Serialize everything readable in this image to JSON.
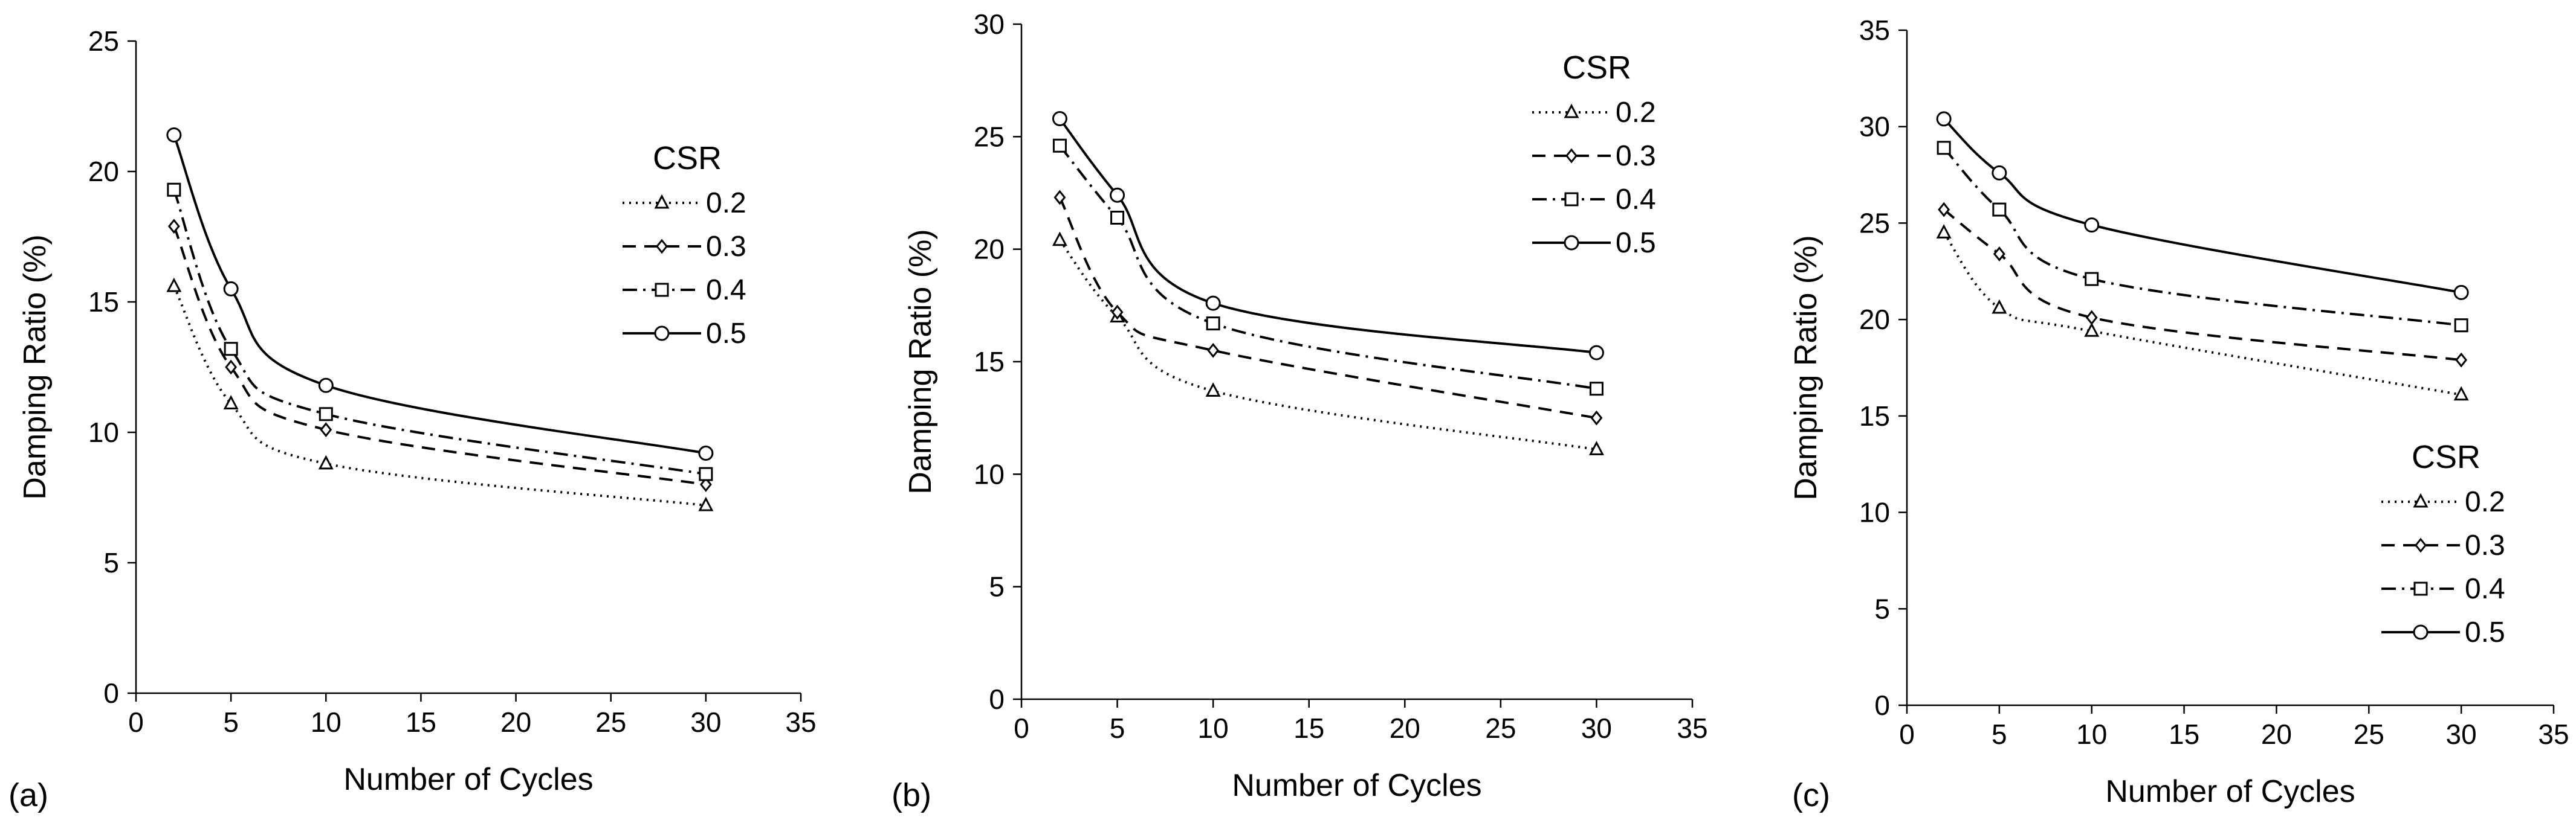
{
  "chart_data": [
    {
      "type": "line",
      "panel": "(a)",
      "xlabel": "Number of Cycles",
      "ylabel": "Damping Ratio (%)",
      "xlim": [
        0,
        35
      ],
      "ylim": [
        0,
        25
      ],
      "xticks": [
        0,
        5,
        10,
        15,
        20,
        25,
        30,
        35
      ],
      "yticks": [
        0,
        5,
        10,
        15,
        20,
        25
      ],
      "legend": {
        "title": "CSR",
        "position": "upper-right"
      },
      "x": [
        2,
        5,
        10,
        30
      ],
      "series": [
        {
          "name": "0.2",
          "marker": "triangle",
          "dash": "dotted",
          "values": [
            15.6,
            11.1,
            8.8,
            7.2
          ]
        },
        {
          "name": "0.3",
          "marker": "diamond",
          "dash": "dashed",
          "values": [
            17.9,
            12.5,
            10.1,
            8.0
          ]
        },
        {
          "name": "0.4",
          "marker": "square",
          "dash": "dash-dot",
          "values": [
            19.3,
            13.2,
            10.7,
            8.4
          ]
        },
        {
          "name": "0.5",
          "marker": "circle",
          "dash": "solid",
          "values": [
            21.4,
            15.5,
            11.8,
            9.2
          ]
        }
      ]
    },
    {
      "type": "line",
      "panel": "(b)",
      "xlabel": "Number of Cycles",
      "ylabel": "Damping Ratio (%)",
      "xlim": [
        0,
        35
      ],
      "ylim": [
        0,
        30
      ],
      "xticks": [
        0,
        5,
        10,
        15,
        20,
        25,
        30,
        35
      ],
      "yticks": [
        0,
        5,
        10,
        15,
        20,
        25,
        30
      ],
      "legend": {
        "title": "CSR",
        "position": "upper-right"
      },
      "x": [
        2,
        5,
        10,
        30
      ],
      "series": [
        {
          "name": "0.2",
          "marker": "triangle",
          "dash": "dotted",
          "values": [
            20.4,
            17.0,
            13.7,
            11.1
          ]
        },
        {
          "name": "0.3",
          "marker": "diamond",
          "dash": "dashed",
          "values": [
            22.3,
            17.2,
            15.5,
            12.5
          ]
        },
        {
          "name": "0.4",
          "marker": "square",
          "dash": "dash-dot",
          "values": [
            24.6,
            21.4,
            16.7,
            13.8
          ]
        },
        {
          "name": "0.5",
          "marker": "circle",
          "dash": "solid",
          "values": [
            25.8,
            22.4,
            17.6,
            15.4
          ]
        }
      ]
    },
    {
      "type": "line",
      "panel": "(c)",
      "xlabel": "Number of Cycles",
      "ylabel": "Damping Ratio (%)",
      "xlim": [
        0,
        35
      ],
      "ylim": [
        0,
        35
      ],
      "xticks": [
        0,
        5,
        10,
        15,
        20,
        25,
        30,
        35
      ],
      "yticks": [
        0,
        5,
        10,
        15,
        20,
        25,
        30,
        35
      ],
      "legend": {
        "title": "CSR",
        "position": "lower-right"
      },
      "x": [
        2,
        5,
        10,
        30
      ],
      "series": [
        {
          "name": "0.2",
          "marker": "triangle",
          "dash": "dotted",
          "values": [
            24.5,
            20.6,
            19.4,
            16.1
          ]
        },
        {
          "name": "0.3",
          "marker": "diamond",
          "dash": "dashed",
          "values": [
            25.7,
            23.4,
            20.1,
            17.9
          ]
        },
        {
          "name": "0.4",
          "marker": "square",
          "dash": "dash-dot",
          "values": [
            28.9,
            25.7,
            22.1,
            19.7
          ]
        },
        {
          "name": "0.5",
          "marker": "circle",
          "dash": "solid",
          "values": [
            30.4,
            27.6,
            24.9,
            21.4
          ]
        }
      ]
    }
  ]
}
